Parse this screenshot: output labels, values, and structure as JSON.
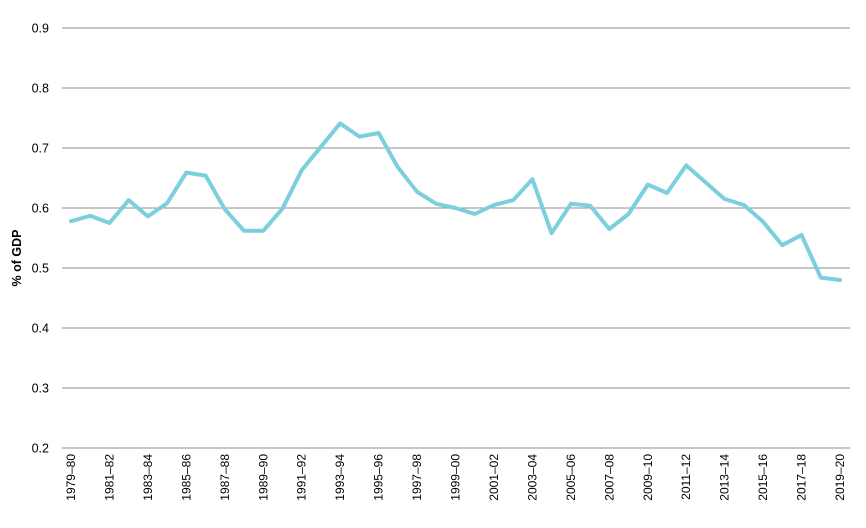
{
  "chart_data": {
    "type": "line",
    "title": "",
    "xlabel": "",
    "ylabel": "% of GDP",
    "ylim": [
      0.2,
      0.9
    ],
    "yticks": [
      "0.2",
      "0.3",
      "0.4",
      "0.5",
      "0.6",
      "0.7",
      "0.8",
      "0.9"
    ],
    "grid": "horizontal",
    "line_color": "#7ccfdd",
    "gridline_color": "#8c8c8c",
    "x": [
      "1979–80",
      "1980–81",
      "1981–82",
      "1982–83",
      "1983–84",
      "1984–85",
      "1985–86",
      "1986–87",
      "1987–88",
      "1988–89",
      "1989–90",
      "1990–91",
      "1991–92",
      "1992–93",
      "1993–94",
      "1994–95",
      "1995–96",
      "1996–97",
      "1997–98",
      "1998–99",
      "1999–00",
      "2000–01",
      "2001–02",
      "2002–03",
      "2003–04",
      "2004–05",
      "2005–06",
      "2006–07",
      "2007–08",
      "2008–09",
      "2009–10",
      "2010–11",
      "2011–12",
      "2012–13",
      "2013–14",
      "2014–15",
      "2015–16",
      "2016–17",
      "2017–18",
      "2018–19",
      "2019–20"
    ],
    "xtick_labels": [
      "1979–80",
      "1981–82",
      "1983–84",
      "1985–86",
      "1987–88",
      "1989–90",
      "1991–92",
      "1993–94",
      "1995–96",
      "1997–98",
      "1999–00",
      "2001–02",
      "2003–04",
      "2005–06",
      "2007–08",
      "2009–10",
      "2011–12",
      "2013–14",
      "2015–16",
      "2017–18",
      "2019–20"
    ],
    "series": [
      {
        "values": [
          0.578,
          0.587,
          0.575,
          0.613,
          0.586,
          0.608,
          0.659,
          0.654,
          0.598,
          0.562,
          0.562,
          0.599,
          0.663,
          0.702,
          0.741,
          0.719,
          0.725,
          0.668,
          0.627,
          0.607,
          0.6,
          0.59,
          0.605,
          0.613,
          0.648,
          0.558,
          0.607,
          0.604,
          0.565,
          0.59,
          0.639,
          0.625,
          0.671,
          0.643,
          0.615,
          0.605,
          0.577,
          0.538,
          0.555,
          0.484,
          0.48
        ]
      }
    ]
  }
}
